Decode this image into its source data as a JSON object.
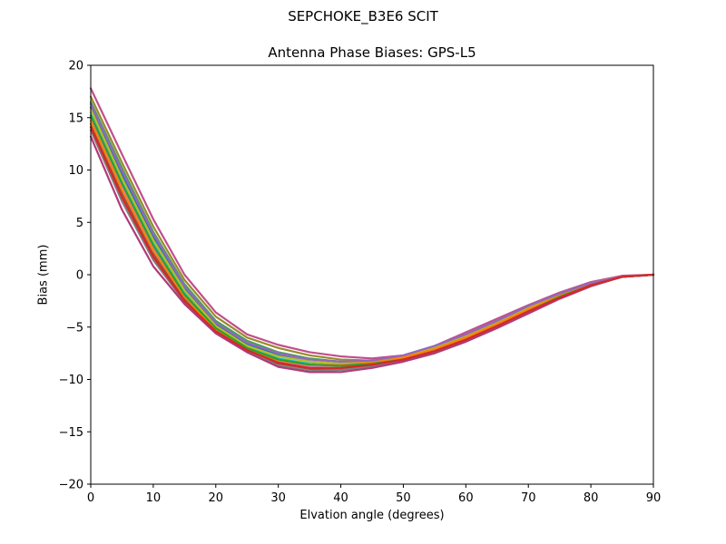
{
  "figure": {
    "suptitle": "SEPCHOKE_B3E6   SCIT"
  },
  "chart_data": {
    "type": "line",
    "title": "Antenna Phase Biases: GPS-L5",
    "xlabel": "Elvation angle (degrees)",
    "ylabel": "Bias (mm)",
    "xlim": [
      0,
      90
    ],
    "ylim": [
      -20,
      20
    ],
    "xticks": [
      0,
      10,
      20,
      30,
      40,
      50,
      60,
      70,
      80,
      90
    ],
    "yticks": [
      -20,
      -15,
      -10,
      -5,
      0,
      5,
      10,
      15,
      20
    ],
    "grid": false,
    "legend": "none",
    "x": [
      0,
      5,
      10,
      15,
      20,
      25,
      30,
      35,
      40,
      45,
      50,
      55,
      60,
      65,
      70,
      75,
      80,
      85,
      90
    ],
    "series": [
      {
        "color": "#c04f8d",
        "values": [
          17.8,
          11.5,
          5.3,
          0.0,
          -3.6,
          -5.7,
          -6.7,
          -7.4,
          -7.8,
          -8.0,
          -7.7,
          -6.8,
          -5.5,
          -4.2,
          -2.9,
          -1.7,
          -0.7,
          -0.1,
          0.0
        ]
      },
      {
        "color": "#9a8a2a",
        "values": [
          17.0,
          10.7,
          4.6,
          -0.5,
          -4.0,
          -6.0,
          -7.0,
          -7.7,
          -8.1,
          -8.2,
          -7.8,
          -6.9,
          -5.7,
          -4.4,
          -3.0,
          -1.8,
          -0.8,
          -0.2,
          0.0
        ]
      },
      {
        "color": "#4a9f5a",
        "values": [
          16.5,
          10.2,
          4.1,
          -0.9,
          -4.4,
          -6.3,
          -7.4,
          -8.0,
          -8.3,
          -8.3,
          -7.8,
          -6.9,
          -5.8,
          -4.5,
          -3.1,
          -1.9,
          -0.8,
          -0.2,
          0.0
        ]
      },
      {
        "color": "#1f77b4",
        "values": [
          16.0,
          9.6,
          3.6,
          -1.3,
          -4.7,
          -6.6,
          -7.7,
          -8.3,
          -8.5,
          -8.4,
          -7.9,
          -7.0,
          -5.9,
          -4.6,
          -3.2,
          -1.9,
          -0.9,
          -0.2,
          0.0
        ]
      },
      {
        "color": "#17becf",
        "values": [
          15.5,
          9.1,
          3.1,
          -1.7,
          -5.0,
          -6.9,
          -8.0,
          -8.5,
          -8.7,
          -8.5,
          -7.9,
          -7.1,
          -6.0,
          -4.7,
          -3.3,
          -2.0,
          -0.9,
          -0.2,
          0.0
        ]
      },
      {
        "color": "#e377c2",
        "values": [
          15.0,
          8.5,
          2.6,
          -2.0,
          -5.2,
          -7.1,
          -8.3,
          -8.8,
          -8.9,
          -8.6,
          -8.0,
          -7.2,
          -6.1,
          -4.8,
          -3.4,
          -2.1,
          -1.0,
          -0.2,
          0.0
        ]
      },
      {
        "color": "#8c564b",
        "values": [
          14.4,
          7.8,
          2.0,
          -2.3,
          -5.3,
          -7.2,
          -8.5,
          -9.0,
          -9.0,
          -8.7,
          -8.1,
          -7.3,
          -6.2,
          -4.9,
          -3.5,
          -2.2,
          -1.0,
          -0.2,
          0.0
        ]
      },
      {
        "color": "#7f7f7f",
        "values": [
          13.8,
          7.0,
          1.4,
          -2.6,
          -5.5,
          -7.3,
          -8.7,
          -9.2,
          -9.1,
          -8.8,
          -8.2,
          -7.4,
          -6.3,
          -5.0,
          -3.6,
          -2.2,
          -1.0,
          -0.2,
          0.0
        ]
      },
      {
        "color": "#b03a7a",
        "values": [
          13.2,
          6.2,
          0.8,
          -2.8,
          -5.6,
          -7.4,
          -8.8,
          -9.3,
          -9.3,
          -8.9,
          -8.3,
          -7.5,
          -6.4,
          -5.1,
          -3.7,
          -2.3,
          -1.1,
          -0.2,
          0.0
        ]
      },
      {
        "color": "#bcbd22",
        "values": [
          15.8,
          9.2,
          3.3,
          -1.5,
          -4.9,
          -6.8,
          -7.8,
          -8.3,
          -8.5,
          -8.3,
          -7.8,
          -6.9,
          -5.8,
          -4.5,
          -3.1,
          -1.9,
          -0.8,
          -0.2,
          0.0
        ]
      },
      {
        "color": "#ff7f0e",
        "values": [
          14.7,
          8.1,
          2.3,
          -2.1,
          -5.3,
          -7.1,
          -8.2,
          -8.6,
          -8.6,
          -8.4,
          -7.9,
          -7.1,
          -6.0,
          -4.7,
          -3.3,
          -2.0,
          -0.9,
          -0.2,
          0.0
        ]
      },
      {
        "color": "#2ca02c",
        "values": [
          15.2,
          8.7,
          2.8,
          -1.9,
          -5.1,
          -7.0,
          -8.1,
          -8.6,
          -8.7,
          -8.5,
          -8.1,
          -7.3,
          -6.2,
          -4.9,
          -3.5,
          -2.1,
          -1.0,
          -0.2,
          0.0
        ]
      },
      {
        "color": "#9467bd",
        "values": [
          16.3,
          9.9,
          3.9,
          -1.1,
          -4.6,
          -6.5,
          -7.5,
          -8.1,
          -8.3,
          -8.2,
          -7.7,
          -6.8,
          -5.7,
          -4.4,
          -3.0,
          -1.8,
          -0.8,
          -0.2,
          0.0
        ]
      },
      {
        "color": "#d62728",
        "values": [
          14.1,
          7.4,
          1.7,
          -2.5,
          -5.4,
          -7.2,
          -8.4,
          -8.9,
          -8.9,
          -8.6,
          -8.1,
          -7.3,
          -6.2,
          -4.9,
          -3.5,
          -2.2,
          -1.0,
          -0.2,
          0.0
        ]
      }
    ]
  }
}
